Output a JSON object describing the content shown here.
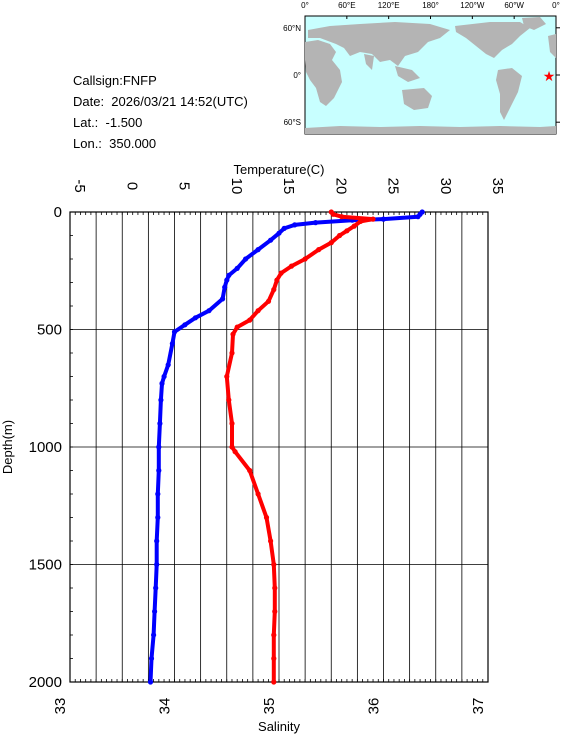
{
  "info": {
    "callsign": "Callsign:FNFP",
    "date": "Date:  2026/03/21 14:52(UTC)",
    "lat": "Lat.:  -1.500",
    "lon": "Lon.:  350.000"
  },
  "map": {
    "lon_labels": [
      "0°",
      "60°E",
      "120°E",
      "180°",
      "120°W",
      "60°W",
      "0°"
    ],
    "lat_labels": [
      "60°N",
      "0°",
      "60°S"
    ],
    "marker": {
      "lat": -1.5,
      "lon": 350.0,
      "color": "#ff0000"
    },
    "ocean_color": "#c8ffff",
    "land_color": "#b4b4b4"
  },
  "chart_data": {
    "type": "line",
    "ylabel": "Depth(m)",
    "x_top_label": "Temperature(C)",
    "x_bottom_label": "Salinity",
    "ylim": [
      2000,
      0
    ],
    "temperature_range": [
      -5,
      35
    ],
    "salinity_range": [
      33,
      37
    ],
    "y_ticks": [
      "0",
      "500",
      "1000",
      "1500",
      "2000"
    ],
    "temp_ticks": [
      "-5",
      "0",
      "5",
      "10",
      "15",
      "20",
      "25",
      "30",
      "35"
    ],
    "sal_ticks": [
      "33",
      "34",
      "35",
      "36",
      "37"
    ],
    "grid": true,
    "series": [
      {
        "name": "Temperature",
        "axis": "temperature",
        "color": "#0000ff",
        "depth": [
          0,
          10,
          20,
          30,
          35,
          45,
          55,
          70,
          90,
          120,
          160,
          200,
          240,
          270,
          290,
          320,
          370,
          420,
          450,
          480,
          510,
          560,
          650,
          700,
          730,
          800,
          900,
          1000,
          1100,
          1200,
          1300,
          1400,
          1500,
          1600,
          1700,
          1800,
          1900,
          2000
        ],
        "values": [
          28.7,
          28.5,
          28.3,
          25.0,
          22.0,
          18.5,
          16.5,
          15.5,
          15.0,
          14.2,
          13.0,
          11.8,
          11.0,
          10.2,
          10.0,
          9.8,
          9.6,
          8.3,
          7.0,
          6.0,
          5.0,
          4.8,
          4.4,
          4.0,
          3.8,
          3.7,
          3.6,
          3.5,
          3.5,
          3.4,
          3.4,
          3.3,
          3.3,
          3.2,
          3.1,
          3.0,
          2.8,
          2.7
        ]
      },
      {
        "name": "Salinity",
        "axis": "salinity",
        "color": "#ff0000",
        "depth": [
          0,
          10,
          20,
          30,
          40,
          60,
          80,
          100,
          130,
          160,
          200,
          230,
          260,
          290,
          330,
          380,
          420,
          460,
          490,
          520,
          600,
          700,
          800,
          900,
          1000,
          1020,
          1100,
          1200,
          1300,
          1400,
          1500,
          1600,
          1700,
          1800,
          1900,
          2000
        ],
        "values": [
          35.5,
          35.52,
          35.6,
          35.9,
          35.78,
          35.72,
          35.65,
          35.58,
          35.5,
          35.38,
          35.25,
          35.12,
          35.02,
          34.98,
          34.95,
          34.9,
          34.8,
          34.72,
          34.6,
          34.56,
          34.55,
          34.5,
          34.52,
          34.55,
          34.55,
          34.58,
          34.72,
          34.8,
          34.88,
          34.92,
          34.95,
          34.96,
          34.96,
          34.95,
          34.95,
          34.95
        ]
      }
    ]
  }
}
